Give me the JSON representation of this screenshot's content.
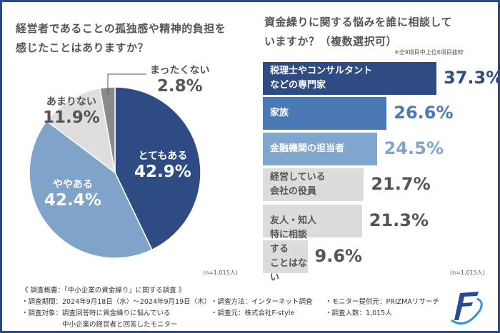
{
  "left": {
    "title_line1": "経営者であることの孤独感や精神的負担を",
    "title_line2": "感じたことはありますか？",
    "n": "(n=1,015人)"
  },
  "right": {
    "title_line1": "資金繰りに関する悩みを誰に相談して",
    "title_line2": "いますか？（複数選択可）",
    "subnote": "※全9項目中上位6項目抜粋",
    "n": "(n=1,015人)"
  },
  "chart_data": [
    {
      "type": "pie",
      "start": "top",
      "direction": "clockwise",
      "slices": [
        {
          "label": "とてもある",
          "value": 42.9,
          "display": "42.9%",
          "color": "#2e4b84"
        },
        {
          "label": "ややある",
          "value": 42.4,
          "display": "42.4%",
          "color": "#7fa3c9"
        },
        {
          "label": "あまりない",
          "value": 11.9,
          "display": "11.9%",
          "color": "#dedede"
        },
        {
          "label": "まったくない",
          "value": 2.8,
          "display": "2.8%",
          "color": "#8a8a8a"
        }
      ]
    },
    {
      "type": "bar",
      "orientation": "horizontal",
      "bars": [
        {
          "label_lines": [
            "税理士やコンサルタント",
            "などの専門家"
          ],
          "value": 37.3,
          "display": "37.3%",
          "color": "#2e4b84",
          "text_color": "#2e4b84"
        },
        {
          "label_lines": [
            "家族"
          ],
          "value": 26.6,
          "display": "26.6%",
          "color": "#4a79b6",
          "text_color": "#4a79b6"
        },
        {
          "label_lines": [
            "金融機関の担当者"
          ],
          "value": 24.5,
          "display": "24.5%",
          "color": "#7fa6cc",
          "text_color": "#7fa6cc"
        },
        {
          "label_lines": [
            "経営している",
            "会社の役員"
          ],
          "value": 21.7,
          "display": "21.7%",
          "color": "#dcdcdc",
          "text_color": "#555555"
        },
        {
          "label_lines": [
            "友人・知人"
          ],
          "value": 21.3,
          "display": "21.3%",
          "color": "#dcdcdc",
          "text_color": "#555555"
        },
        {
          "label_lines": [
            "特に相談する",
            "ことはない"
          ],
          "value": 9.6,
          "display": "9.6%",
          "color": "#dcdcdc",
          "text_color": "#555555"
        }
      ]
    }
  ],
  "footer": {
    "heading": "《 調査概要：「中小企業の資金繰り」に関する調査 》",
    "rows": [
      [
        "・調査期間：2024年9月18日（水）～2024年9月19日（木）",
        "・調査方法：インターネット調査",
        "・モニター提供元：PRIZMAリサーチ"
      ],
      [
        "・調査対象：調査回答時に資金繰りに悩んでいる",
        "・調査元：株式会社F-style",
        "・調査人数：1,015人"
      ],
      [
        "　　　　　　中小企業の経営者と回答したモニター",
        "",
        ""
      ]
    ]
  }
}
